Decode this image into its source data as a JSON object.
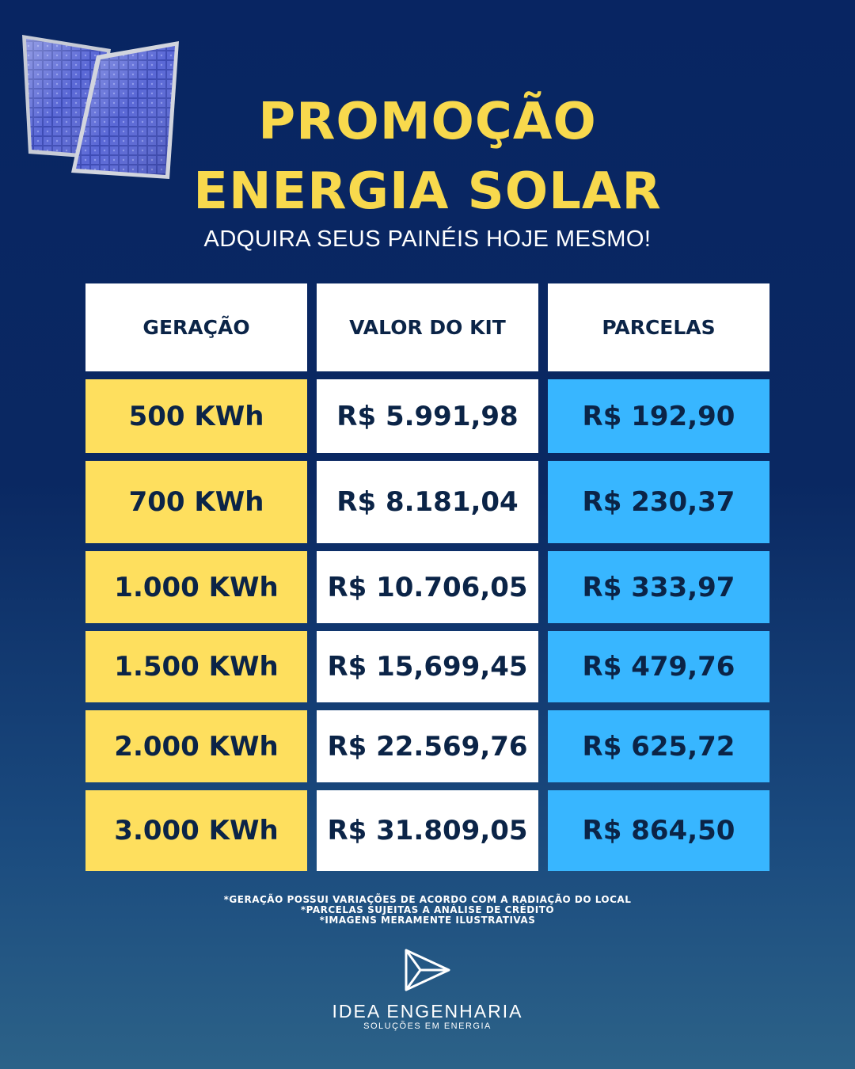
{
  "promo": {
    "title_line1": "PROMOÇÃO",
    "title_line2": "ENERGIA SOLAR",
    "subtitle": "ADQUIRA SEUS PAINÉIS HOJE MESMO!"
  },
  "table": {
    "headers": [
      "GERAÇÃO",
      "VALOR DO KIT",
      "PARCELAS"
    ],
    "rows": [
      [
        "500 KWh",
        "R$ 5.991,98",
        "R$ 192,90"
      ],
      [
        "700 KWh",
        "R$ 8.181,04",
        "R$ 230,37"
      ],
      [
        "1.000 KWh",
        "R$ 10.706,05",
        "R$ 333,97"
      ],
      [
        "1.500 KWh",
        "R$ 15,699,45",
        "R$ 479,76"
      ],
      [
        "2.000 KWh",
        "R$ 22.569,76",
        "R$ 625,72"
      ],
      [
        "3.000 KWh",
        "R$ 31.809,05",
        "R$ 864,50"
      ]
    ]
  },
  "disclaimers": [
    "*GERAÇÃO POSSUI VARIAÇÕES DE ACORDO COM A RADIAÇÃO DO LOCAL",
    "*PARCELAS SUJEITAS A ANÁLISE DE CRÉDITO",
    "*IMAGENS MERAMENTE ILUSTRATIVAS"
  ],
  "brand": {
    "name": "IDEA ENGENHARIA",
    "tagline": "SOLUÇÕES EM ENERGIA",
    "logo_icon": "play-triangle-logo-icon"
  },
  "colors": {
    "background": "#082562",
    "title": "#f8d94d",
    "generation_cells": "#fedf5e",
    "kit_value_cells": "#ffffff",
    "installment_cells": "#38b6ff",
    "cell_text": "#0b2447"
  }
}
